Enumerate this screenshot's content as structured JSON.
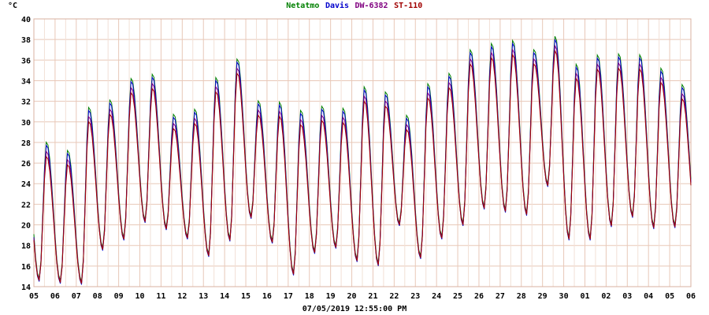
{
  "chart_data": {
    "type": "line",
    "ylabel": "°C",
    "xlabel": "07/05/2019 12:55:00 PM",
    "ylim": [
      14,
      40
    ],
    "yticks": [
      14,
      16,
      18,
      20,
      22,
      24,
      26,
      28,
      30,
      32,
      34,
      36,
      38,
      40
    ],
    "x_tick_labels": [
      "05",
      "06",
      "07",
      "08",
      "09",
      "10",
      "11",
      "12",
      "13",
      "14",
      "15",
      "16",
      "17",
      "18",
      "19",
      "20",
      "21",
      "22",
      "23",
      "24",
      "25",
      "26",
      "27",
      "28",
      "29",
      "30",
      "01",
      "02",
      "03",
      "04",
      "05",
      "06"
    ],
    "grid": true,
    "legend_position": "top-center",
    "daily_extremes": {
      "days": [
        "05",
        "06",
        "07",
        "08",
        "09",
        "10",
        "11",
        "12",
        "13",
        "14",
        "15",
        "16",
        "17",
        "18",
        "19",
        "20",
        "21",
        "22",
        "23",
        "24",
        "25",
        "26",
        "27",
        "28",
        "29",
        "30",
        "01",
        "02",
        "03",
        "04",
        "05"
      ],
      "lows": [
        14.6,
        14.4,
        14.3,
        17.6,
        18.6,
        20.3,
        19.6,
        18.7,
        17.0,
        18.5,
        20.7,
        18.3,
        15.2,
        17.3,
        17.8,
        16.5,
        16.1,
        20.0,
        16.8,
        18.7,
        20.0,
        21.6,
        21.3,
        21.0,
        23.8,
        18.6,
        18.6,
        19.9,
        20.8,
        19.7,
        19.8
      ],
      "highs": [
        27.8,
        27.0,
        31.2,
        31.9,
        34.0,
        34.4,
        30.5,
        31.0,
        34.1,
        35.9,
        31.8,
        31.7,
        30.9,
        31.3,
        31.1,
        33.2,
        32.7,
        30.4,
        33.5,
        34.5,
        36.8,
        37.4,
        37.7,
        36.8,
        38.1,
        35.4,
        36.3,
        36.4,
        36.3,
        35.0,
        33.4
      ]
    },
    "series": [
      {
        "name": "Netatmo",
        "color": "#008000",
        "lows_offset": 0.2,
        "highs_offset": 0.3
      },
      {
        "name": "Davis",
        "color": "#0000cc",
        "lows_offset": -0.1,
        "highs_offset": 0.0
      },
      {
        "name": "DW-6382",
        "color": "#800080",
        "lows_offset": 0.1,
        "highs_offset": -0.6
      },
      {
        "name": "ST-110",
        "color": "#a00000",
        "lows_offset": 0.0,
        "highs_offset": -1.1
      }
    ]
  }
}
